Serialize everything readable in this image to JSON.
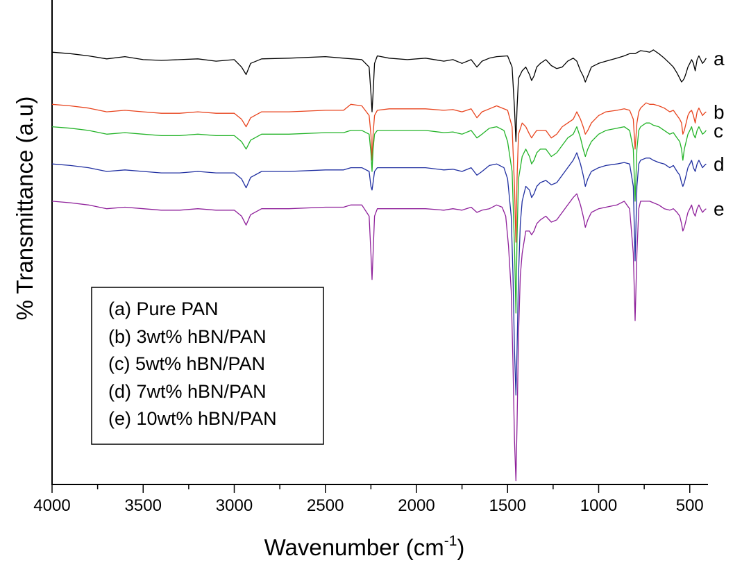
{
  "chart_data": {
    "type": "line",
    "xlabel": "Wavenumber (cm",
    "xlabel_sup": "-1",
    "xlabel_close": ")",
    "ylabel": "% Transmittance (a.u)",
    "xlim": [
      4000,
      400
    ],
    "x_reversed": true,
    "ylim": [
      -5.8,
      0.7
    ],
    "y_tick_labels_shown": false,
    "grid": false,
    "x_ticks": [
      4000,
      3500,
      3000,
      2500,
      2000,
      1500,
      1000,
      500
    ],
    "x_tick_labels": [
      "4000",
      "3500",
      "3000",
      "2500",
      "2000",
      "1500",
      "1000",
      "500"
    ],
    "legend": {
      "placement": "lower-left",
      "entries": [
        "(a) Pure PAN",
        "(b) 3wt% hBN/PAN",
        "(c) 5wt% hBN/PAN",
        "(d) 7wt% hBN/PAN",
        "(e) 10wt% hBN/PAN"
      ]
    },
    "series": [
      {
        "tag": "a",
        "color": "#000000",
        "x": [
          4000,
          3900,
          3800,
          3700,
          3600,
          3500,
          3400,
          3300,
          3200,
          3100,
          3000,
          2960,
          2935,
          2910,
          2850,
          2700,
          2500,
          2400,
          2300,
          2260,
          2250,
          2244,
          2238,
          2230,
          2215,
          2150,
          2050,
          1950,
          1850,
          1800,
          1750,
          1700,
          1668,
          1640,
          1600,
          1560,
          1500,
          1475,
          1462,
          1454,
          1448,
          1440,
          1420,
          1400,
          1380,
          1368,
          1355,
          1340,
          1320,
          1290,
          1260,
          1230,
          1200,
          1170,
          1140,
          1120,
          1100,
          1085,
          1073,
          1060,
          1040,
          1000,
          960,
          900,
          860,
          830,
          800,
          770,
          740,
          720,
          700,
          670,
          640,
          610,
          590,
          570,
          555,
          545,
          538,
          530,
          520,
          510,
          500,
          490,
          480,
          470,
          460,
          450,
          440,
          430,
          420,
          410
        ],
        "y": [
          0,
          -0.02,
          -0.05,
          -0.09,
          -0.06,
          -0.1,
          -0.11,
          -0.1,
          -0.09,
          -0.12,
          -0.1,
          -0.2,
          -0.3,
          -0.15,
          -0.09,
          -0.08,
          -0.06,
          -0.08,
          -0.1,
          -0.2,
          -0.55,
          -0.8,
          -0.55,
          -0.15,
          -0.05,
          -0.08,
          -0.1,
          -0.08,
          -0.12,
          -0.1,
          -0.15,
          -0.1,
          -0.2,
          -0.12,
          -0.08,
          -0.06,
          -0.05,
          -0.2,
          -0.75,
          -1.2,
          -0.75,
          -0.35,
          -0.25,
          -0.2,
          -0.3,
          -0.38,
          -0.32,
          -0.2,
          -0.15,
          -0.1,
          -0.18,
          -0.22,
          -0.2,
          -0.12,
          -0.08,
          -0.12,
          -0.25,
          -0.32,
          -0.4,
          -0.32,
          -0.2,
          -0.15,
          -0.12,
          -0.08,
          -0.05,
          -0.02,
          -0.02,
          0.02,
          0.01,
          0,
          0.03,
          -0.02,
          -0.08,
          -0.15,
          -0.2,
          -0.28,
          -0.35,
          -0.4,
          -0.38,
          -0.35,
          -0.28,
          -0.2,
          -0.15,
          -0.1,
          -0.15,
          -0.25,
          -0.1,
          -0.05,
          -0.1,
          -0.15,
          -0.12,
          -0.08
        ]
      },
      {
        "tag": "b",
        "color": "#e8431d",
        "x": [
          4000,
          3900,
          3800,
          3700,
          3600,
          3500,
          3400,
          3300,
          3200,
          3100,
          3000,
          2960,
          2935,
          2910,
          2850,
          2700,
          2500,
          2400,
          2360,
          2300,
          2260,
          2250,
          2244,
          2238,
          2230,
          2215,
          2150,
          2050,
          1950,
          1850,
          1800,
          1750,
          1700,
          1668,
          1640,
          1600,
          1560,
          1500,
          1475,
          1462,
          1454,
          1448,
          1440,
          1420,
          1400,
          1380,
          1368,
          1355,
          1340,
          1320,
          1290,
          1260,
          1230,
          1200,
          1170,
          1140,
          1120,
          1100,
          1085,
          1073,
          1060,
          1040,
          1000,
          960,
          900,
          860,
          830,
          810,
          800,
          790,
          780,
          770,
          740,
          720,
          700,
          670,
          640,
          610,
          590,
          570,
          555,
          545,
          538,
          530,
          520,
          510,
          500,
          490,
          480,
          470,
          460,
          450,
          440,
          430,
          420,
          410
        ],
        "y": [
          -0.7,
          -0.72,
          -0.75,
          -0.8,
          -0.78,
          -0.8,
          -0.82,
          -0.82,
          -0.8,
          -0.82,
          -0.82,
          -0.9,
          -1.0,
          -0.88,
          -0.8,
          -0.8,
          -0.78,
          -0.78,
          -0.7,
          -0.72,
          -0.85,
          -1.1,
          -1.45,
          -1.1,
          -0.85,
          -0.78,
          -0.76,
          -0.76,
          -0.76,
          -0.78,
          -0.77,
          -0.8,
          -0.76,
          -0.88,
          -0.8,
          -0.76,
          -0.72,
          -0.78,
          -1.0,
          -1.8,
          -2.55,
          -1.7,
          -1.1,
          -0.95,
          -1.0,
          -1.1,
          -1.15,
          -1.1,
          -1.05,
          -1.05,
          -1.05,
          -1.15,
          -1.1,
          -1.0,
          -0.95,
          -0.9,
          -0.8,
          -0.9,
          -1.0,
          -1.1,
          -1.05,
          -0.95,
          -0.85,
          -0.8,
          -0.78,
          -0.76,
          -0.78,
          -0.9,
          -1.3,
          -0.95,
          -0.8,
          -0.75,
          -0.68,
          -0.7,
          -0.7,
          -0.72,
          -0.75,
          -0.8,
          -0.78,
          -0.85,
          -0.9,
          -0.95,
          -1.1,
          -1.05,
          -0.95,
          -0.85,
          -0.8,
          -0.78,
          -0.85,
          -0.95,
          -0.8,
          -0.75,
          -0.8,
          -0.85,
          -0.82,
          -0.8
        ]
      },
      {
        "tag": "c",
        "color": "#22b327",
        "x": [
          4000,
          3900,
          3800,
          3700,
          3600,
          3500,
          3400,
          3300,
          3200,
          3100,
          3000,
          2960,
          2935,
          2910,
          2850,
          2700,
          2500,
          2400,
          2360,
          2300,
          2260,
          2250,
          2244,
          2238,
          2230,
          2215,
          2150,
          2050,
          1950,
          1850,
          1800,
          1750,
          1700,
          1668,
          1640,
          1600,
          1560,
          1520,
          1500,
          1475,
          1462,
          1454,
          1448,
          1440,
          1420,
          1400,
          1380,
          1368,
          1355,
          1340,
          1320,
          1290,
          1260,
          1230,
          1200,
          1170,
          1140,
          1120,
          1100,
          1085,
          1073,
          1060,
          1040,
          1000,
          960,
          900,
          860,
          830,
          810,
          800,
          790,
          780,
          770,
          740,
          720,
          700,
          670,
          640,
          610,
          590,
          570,
          555,
          545,
          538,
          530,
          520,
          510,
          500,
          490,
          480,
          470,
          460,
          450,
          440,
          430,
          420,
          410
        ],
        "y": [
          -1.0,
          -1.02,
          -1.05,
          -1.1,
          -1.08,
          -1.1,
          -1.12,
          -1.12,
          -1.1,
          -1.12,
          -1.12,
          -1.2,
          -1.3,
          -1.18,
          -1.1,
          -1.1,
          -1.08,
          -1.08,
          -1.05,
          -1.05,
          -1.1,
          -1.35,
          -1.6,
          -1.3,
          -1.1,
          -1.05,
          -1.05,
          -1.05,
          -1.05,
          -1.08,
          -1.07,
          -1.1,
          -1.05,
          -1.15,
          -1.1,
          -1.02,
          -1.0,
          -1.05,
          -1.2,
          -1.6,
          -2.6,
          -3.5,
          -2.5,
          -1.7,
          -1.4,
          -1.3,
          -1.4,
          -1.5,
          -1.45,
          -1.35,
          -1.3,
          -1.3,
          -1.4,
          -1.35,
          -1.25,
          -1.15,
          -1.1,
          -1.0,
          -1.15,
          -1.3,
          -1.4,
          -1.3,
          -1.2,
          -1.1,
          -1.05,
          -1.02,
          -1.0,
          -1.05,
          -1.3,
          -2.0,
          -1.3,
          -1.05,
          -1.0,
          -0.95,
          -0.95,
          -0.98,
          -1.0,
          -1.05,
          -1.1,
          -1.08,
          -1.15,
          -1.2,
          -1.3,
          -1.45,
          -1.3,
          -1.2,
          -1.1,
          -1.05,
          -1.0,
          -1.1,
          -1.15,
          -1.05,
          -1.0,
          -1.05,
          -1.1,
          -1.08,
          -1.05
        ]
      },
      {
        "tag": "d",
        "color": "#1f2ea0",
        "x": [
          4000,
          3900,
          3800,
          3700,
          3600,
          3500,
          3400,
          3300,
          3200,
          3100,
          3000,
          2960,
          2935,
          2910,
          2850,
          2700,
          2500,
          2400,
          2360,
          2300,
          2260,
          2250,
          2244,
          2238,
          2230,
          2215,
          2150,
          2050,
          1950,
          1850,
          1800,
          1750,
          1700,
          1668,
          1640,
          1600,
          1560,
          1520,
          1500,
          1480,
          1470,
          1462,
          1454,
          1448,
          1440,
          1430,
          1420,
          1400,
          1380,
          1368,
          1355,
          1340,
          1320,
          1290,
          1260,
          1230,
          1200,
          1170,
          1140,
          1120,
          1100,
          1085,
          1073,
          1060,
          1040,
          1000,
          960,
          900,
          860,
          830,
          810,
          800,
          790,
          780,
          770,
          740,
          720,
          700,
          670,
          640,
          610,
          590,
          570,
          555,
          545,
          538,
          530,
          520,
          510,
          500,
          490,
          480,
          470,
          460,
          450,
          440,
          430,
          420,
          410
        ],
        "y": [
          -1.5,
          -1.52,
          -1.55,
          -1.6,
          -1.58,
          -1.6,
          -1.62,
          -1.62,
          -1.6,
          -1.62,
          -1.62,
          -1.7,
          -1.82,
          -1.68,
          -1.6,
          -1.6,
          -1.58,
          -1.58,
          -1.55,
          -1.55,
          -1.6,
          -1.8,
          -1.85,
          -1.75,
          -1.6,
          -1.55,
          -1.55,
          -1.55,
          -1.55,
          -1.58,
          -1.57,
          -1.6,
          -1.55,
          -1.65,
          -1.6,
          -1.52,
          -1.5,
          -1.55,
          -1.7,
          -2.2,
          -3.0,
          -4.0,
          -4.6,
          -4.0,
          -3.0,
          -2.3,
          -2.0,
          -1.8,
          -1.85,
          -1.95,
          -1.9,
          -1.8,
          -1.75,
          -1.72,
          -1.78,
          -1.75,
          -1.65,
          -1.55,
          -1.45,
          -1.35,
          -1.5,
          -1.65,
          -1.8,
          -1.7,
          -1.6,
          -1.55,
          -1.52,
          -1.5,
          -1.48,
          -1.5,
          -1.8,
          -2.8,
          -1.8,
          -1.5,
          -1.45,
          -1.42,
          -1.42,
          -1.45,
          -1.48,
          -1.5,
          -1.55,
          -1.52,
          -1.6,
          -1.65,
          -1.75,
          -1.8,
          -1.75,
          -1.65,
          -1.55,
          -1.5,
          -1.45,
          -1.55,
          -1.6,
          -1.5,
          -1.45,
          -1.5,
          -1.55,
          -1.52,
          -1.5
        ]
      },
      {
        "tag": "e",
        "color": "#8e1f9a",
        "x": [
          4000,
          3900,
          3800,
          3700,
          3600,
          3500,
          3400,
          3300,
          3200,
          3100,
          3000,
          2960,
          2935,
          2910,
          2850,
          2700,
          2500,
          2400,
          2360,
          2300,
          2260,
          2250,
          2244,
          2238,
          2230,
          2215,
          2150,
          2050,
          1950,
          1850,
          1800,
          1750,
          1700,
          1668,
          1640,
          1600,
          1560,
          1530,
          1510,
          1495,
          1480,
          1470,
          1462,
          1454,
          1448,
          1440,
          1430,
          1420,
          1410,
          1400,
          1380,
          1368,
          1355,
          1340,
          1320,
          1290,
          1260,
          1230,
          1200,
          1170,
          1140,
          1120,
          1100,
          1085,
          1073,
          1060,
          1040,
          1000,
          960,
          900,
          860,
          830,
          810,
          800,
          790,
          780,
          770,
          740,
          720,
          700,
          670,
          640,
          610,
          590,
          570,
          555,
          545,
          538,
          530,
          520,
          510,
          500,
          490,
          480,
          470,
          460,
          450,
          440,
          430,
          420,
          410
        ],
        "y": [
          -2.0,
          -2.02,
          -2.05,
          -2.1,
          -2.08,
          -2.1,
          -2.12,
          -2.12,
          -2.1,
          -2.12,
          -2.12,
          -2.2,
          -2.32,
          -2.18,
          -2.1,
          -2.1,
          -2.08,
          -2.08,
          -2.05,
          -2.05,
          -2.2,
          -2.7,
          -3.05,
          -2.7,
          -2.2,
          -2.1,
          -2.1,
          -2.1,
          -2.1,
          -2.12,
          -2.1,
          -2.12,
          -2.08,
          -2.15,
          -2.12,
          -2.1,
          -2.05,
          -2.08,
          -2.2,
          -2.6,
          -3.2,
          -4.2,
          -5.2,
          -5.75,
          -5.0,
          -3.8,
          -3.0,
          -2.7,
          -2.55,
          -2.4,
          -2.4,
          -2.45,
          -2.4,
          -2.3,
          -2.25,
          -2.2,
          -2.28,
          -2.25,
          -2.15,
          -2.05,
          -1.95,
          -1.9,
          -2.05,
          -2.2,
          -2.35,
          -2.25,
          -2.15,
          -2.1,
          -2.08,
          -2.05,
          -2.0,
          -2.1,
          -2.7,
          -3.6,
          -2.7,
          -2.1,
          -2.0,
          -2.0,
          -2.0,
          -2.02,
          -2.05,
          -2.1,
          -2.12,
          -2.1,
          -2.15,
          -2.2,
          -2.3,
          -2.4,
          -2.35,
          -2.25,
          -2.15,
          -2.1,
          -2.05,
          -2.15,
          -2.2,
          -2.1,
          -2.05,
          -2.1,
          -2.15,
          -2.12,
          -2.1
        ]
      }
    ]
  }
}
